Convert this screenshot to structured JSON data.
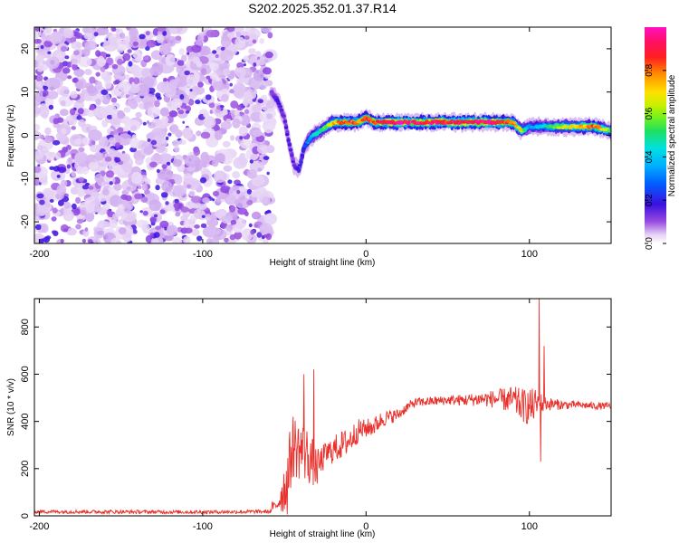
{
  "figure_title": "S202.2025.352.01.37.R14",
  "chart_data": [
    {
      "type": "heatmap",
      "title": "S202.2025.352.01.37.R14",
      "xlabel": "Height of straight line (km)",
      "ylabel": "Frequency (Hz)",
      "xlim": [
        -203,
        150
      ],
      "ylim": [
        -25,
        25
      ],
      "xticks": [
        -200,
        -100,
        0,
        100
      ],
      "yticks": [
        -20,
        -10,
        0,
        10,
        20
      ],
      "tick_labels_x": [
        "-200",
        "-100",
        "0",
        "100"
      ],
      "tick_labels_y": [
        "-20",
        "-10",
        "0",
        "10",
        "20"
      ],
      "colorbar": {
        "label": "Normalized spectral amplitude",
        "range": [
          0,
          1
        ],
        "ticks": [
          0.0,
          0.2,
          0.4,
          0.6,
          0.8
        ],
        "tick_labels": [
          "0.0",
          "0.2",
          "0.4",
          "0.6",
          "0.8"
        ],
        "colormap": "rainbow-white-to-magenta"
      },
      "noise_region": {
        "x_range": [
          -203,
          -58
        ],
        "freq_range": [
          -25,
          25
        ],
        "amplitude_range": [
          0.05,
          0.15
        ]
      },
      "signal_track": {
        "x": [
          -58,
          -54,
          -50,
          -47,
          -44,
          -41,
          -38,
          -35,
          -32,
          -28,
          -24,
          -20,
          -15,
          -10,
          -5,
          0,
          5,
          10,
          20,
          30,
          40,
          50,
          60,
          70,
          80,
          85,
          90,
          95,
          100,
          110,
          120,
          130,
          140,
          150
        ],
        "frequency": [
          10,
          8,
          4,
          -2,
          -7,
          -8,
          -3,
          -1,
          0,
          1,
          2,
          3,
          3,
          3,
          3,
          4,
          3,
          3,
          3,
          3,
          3,
          3,
          3,
          3,
          3,
          3,
          3,
          1,
          2,
          2,
          2,
          2,
          2,
          1
        ],
        "amplitude": [
          0.12,
          0.2,
          0.15,
          0.2,
          0.15,
          0.2,
          0.25,
          0.35,
          0.45,
          0.5,
          0.65,
          0.75,
          0.85,
          0.9,
          0.85,
          0.9,
          0.9,
          0.95,
          1.0,
          0.95,
          1.0,
          0.95,
          1.0,
          0.95,
          1.0,
          0.9,
          0.8,
          0.7,
          0.35,
          0.5,
          0.65,
          0.75,
          0.85,
          0.6
        ]
      }
    },
    {
      "type": "line",
      "title": "",
      "xlabel": "Height of straight line (km)",
      "ylabel": "SNR (10 * v/v)",
      "xlim": [
        -203,
        150
      ],
      "ylim": [
        0,
        920
      ],
      "xticks": [
        -200,
        -100,
        0,
        100
      ],
      "yticks": [
        0,
        200,
        400,
        600,
        800
      ],
      "tick_labels_x": [
        "-200",
        "-100",
        "0",
        "100"
      ],
      "tick_labels_y": [
        "0",
        "200",
        "400",
        "600",
        "800"
      ],
      "color": "#e8312c",
      "series": [
        {
          "name": "SNR",
          "baseline": {
            "x": [
              -203,
              -150,
              -100,
              -60
            ],
            "y": [
              18,
              17,
              16,
              18
            ],
            "noise": 8
          },
          "envelope": {
            "x": [
              -55,
              -48,
              -45,
              -40,
              -35,
              -30,
              -25,
              -20,
              -15,
              -10,
              -5,
              0,
              5,
              10,
              15,
              20,
              25,
              30,
              40,
              50,
              60,
              70,
              80,
              90,
              95,
              100,
              104,
              110,
              120,
              130,
              140,
              150
            ],
            "y": [
              40,
              150,
              300,
              280,
              250,
              200,
              260,
              280,
              300,
              320,
              360,
              370,
              380,
              410,
              420,
              430,
              460,
              480,
              485,
              490,
              490,
              495,
              495,
              490,
              470,
              460,
              470,
              475,
              470,
              470,
              465,
              465
            ],
            "noise": [
              20,
              150,
              140,
              130,
              120,
              80,
              50,
              60,
              60,
              60,
              50,
              40,
              40,
              35,
              30,
              25,
              20,
              20,
              20,
              20,
              25,
              30,
              40,
              60,
              70,
              80,
              70,
              30,
              20,
              15,
              15,
              15
            ]
          },
          "spikes": [
            {
              "x": -38,
              "y": 600
            },
            {
              "x": -32,
              "y": 620
            },
            {
              "x": 106,
              "y": 920
            },
            {
              "x": 109,
              "y": 720
            },
            {
              "x": 107,
              "y": 230
            }
          ]
        }
      ]
    }
  ]
}
